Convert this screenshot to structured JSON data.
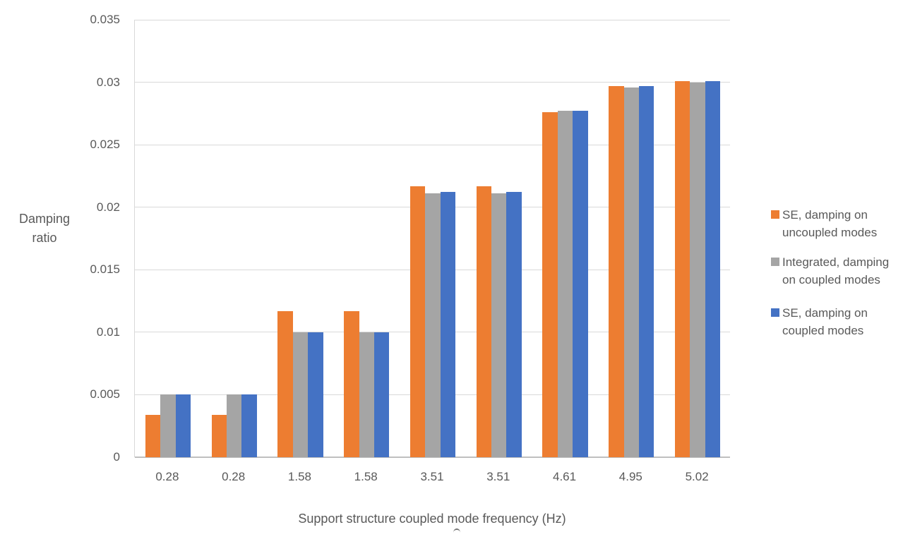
{
  "chart_data": {
    "type": "bar",
    "title": "",
    "xlabel": "Support structure coupled mode frequency (Hz)",
    "ylabel": "Damping\nratio",
    "categories": [
      "0.28",
      "0.28",
      "1.58",
      "1.58",
      "3.51",
      "3.51",
      "4.61",
      "4.95",
      "5.02"
    ],
    "series": [
      {
        "name": "SE, damping on\nuncoupled modes",
        "color": "#ED7D31",
        "values": [
          0.0034,
          0.0034,
          0.0117,
          0.0117,
          0.0217,
          0.0217,
          0.0276,
          0.0297,
          0.0301
        ]
      },
      {
        "name": "Integrated, damping\non coupled modes",
        "color": "#A5A5A5",
        "values": [
          0.005,
          0.005,
          0.01,
          0.01,
          0.0211,
          0.0211,
          0.0277,
          0.0296,
          0.03
        ]
      },
      {
        "name": "SE, damping on\ncoupled modes",
        "color": "#4472C4",
        "values": [
          0.005,
          0.005,
          0.01,
          0.01,
          0.0212,
          0.0212,
          0.0277,
          0.0297,
          0.0301
        ]
      }
    ],
    "ylim": [
      0,
      0.035
    ],
    "y_ticks": [
      0,
      0.005,
      0.01,
      0.015,
      0.02,
      0.025,
      0.03,
      0.035
    ],
    "y_tick_labels": [
      "0",
      "0.005",
      "0.01",
      "0.015",
      "0.02",
      "0.025",
      "0.03",
      "0.035"
    ],
    "grid": true,
    "legend_position": "right",
    "colors": {
      "gridline": "#D9D9D9",
      "axis_line": "#BFBFBF",
      "text": "#595959"
    }
  }
}
